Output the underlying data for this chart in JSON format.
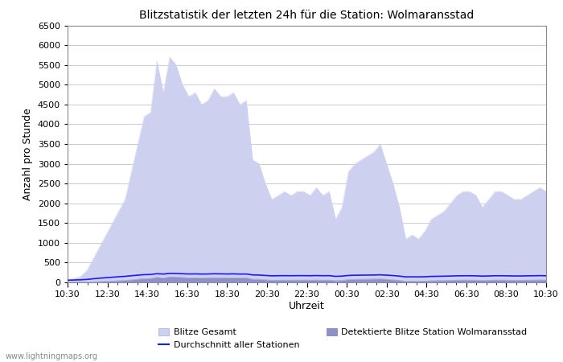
{
  "title": "Blitzstatistik der letzten 24h für die Station: Wolmaransstad",
  "xlabel": "Uhrzeit",
  "ylabel": "Anzahl pro Stunde",
  "ylim": [
    0,
    6500
  ],
  "background_color": "#ffffff",
  "x_ticks_labels": [
    "10:30",
    "12:30",
    "14:30",
    "16:30",
    "18:30",
    "20:30",
    "22:30",
    "00:30",
    "02:30",
    "04:30",
    "06:30",
    "08:30",
    "10:30"
  ],
  "blitze_gesamt": [
    50,
    100,
    150,
    300,
    600,
    900,
    1200,
    1500,
    1800,
    2100,
    2800,
    3500,
    4200,
    4300,
    5600,
    4800,
    5700,
    5500,
    5000,
    4700,
    4800,
    4500,
    4600,
    4900,
    4700,
    4700,
    4800,
    4500,
    4600,
    3100,
    3000,
    2500,
    2100,
    2200,
    2300,
    2200,
    2300,
    2300,
    2200,
    2400,
    2200,
    2300,
    1600,
    1900,
    2800,
    3000,
    3100,
    3200,
    3300,
    3500,
    3000,
    2500,
    1900,
    1100,
    1200,
    1100,
    1300,
    1600,
    1700,
    1800,
    2000,
    2200,
    2300,
    2300,
    2200,
    1900,
    2100,
    2300,
    2300,
    2200,
    2100,
    2100,
    2200,
    2300,
    2400,
    2300
  ],
  "detektierte_blitze": [
    2,
    3,
    4,
    8,
    15,
    20,
    28,
    35,
    42,
    50,
    65,
    80,
    95,
    100,
    130,
    110,
    140,
    135,
    125,
    115,
    118,
    112,
    115,
    120,
    118,
    115,
    118,
    112,
    115,
    80,
    78,
    65,
    55,
    58,
    60,
    58,
    60,
    60,
    58,
    62,
    58,
    60,
    42,
    50,
    72,
    78,
    80,
    82,
    85,
    90,
    78,
    65,
    50,
    30,
    32,
    30,
    34,
    42,
    45,
    48,
    52,
    58,
    60,
    60,
    58,
    50,
    55,
    60,
    60,
    58,
    55,
    55,
    58,
    60,
    62,
    60
  ],
  "durchschnitt": [
    55,
    60,
    65,
    75,
    90,
    105,
    118,
    130,
    142,
    152,
    168,
    182,
    195,
    198,
    220,
    210,
    228,
    225,
    218,
    212,
    215,
    210,
    212,
    218,
    215,
    212,
    215,
    210,
    212,
    188,
    185,
    175,
    165,
    168,
    170,
    168,
    170,
    170,
    168,
    172,
    168,
    170,
    152,
    158,
    175,
    180,
    182,
    184,
    186,
    190,
    182,
    172,
    158,
    138,
    140,
    138,
    142,
    150,
    153,
    156,
    160,
    165,
    167,
    167,
    165,
    158,
    162,
    167,
    167,
    165,
    162,
    162,
    165,
    167,
    170,
    167
  ],
  "fill_gesamt_color": "#cdd0ee",
  "fill_detektiert_color": "#9090c8",
  "line_durchschnitt_color": "#1a1aff",
  "watermark": "www.lightningmaps.org"
}
